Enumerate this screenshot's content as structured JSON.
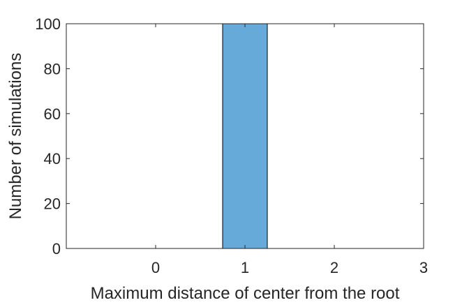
{
  "chart_data": {
    "type": "bar",
    "title": "",
    "xlabel": "Maximum distance of center from the root",
    "ylabel": "Number of simulations",
    "categories": [
      0,
      1,
      2
    ],
    "values": [
      0,
      100,
      0
    ],
    "bin_width": 0.5,
    "xlim": [
      -1,
      3
    ],
    "ylim": [
      0,
      100
    ],
    "xticks": [
      0,
      1,
      2,
      3
    ],
    "yticks": [
      0,
      20,
      40,
      60,
      80,
      100
    ],
    "grid": false,
    "bar_color": "#66aada",
    "edge_color": "#000000",
    "axis_color": "#262626"
  }
}
